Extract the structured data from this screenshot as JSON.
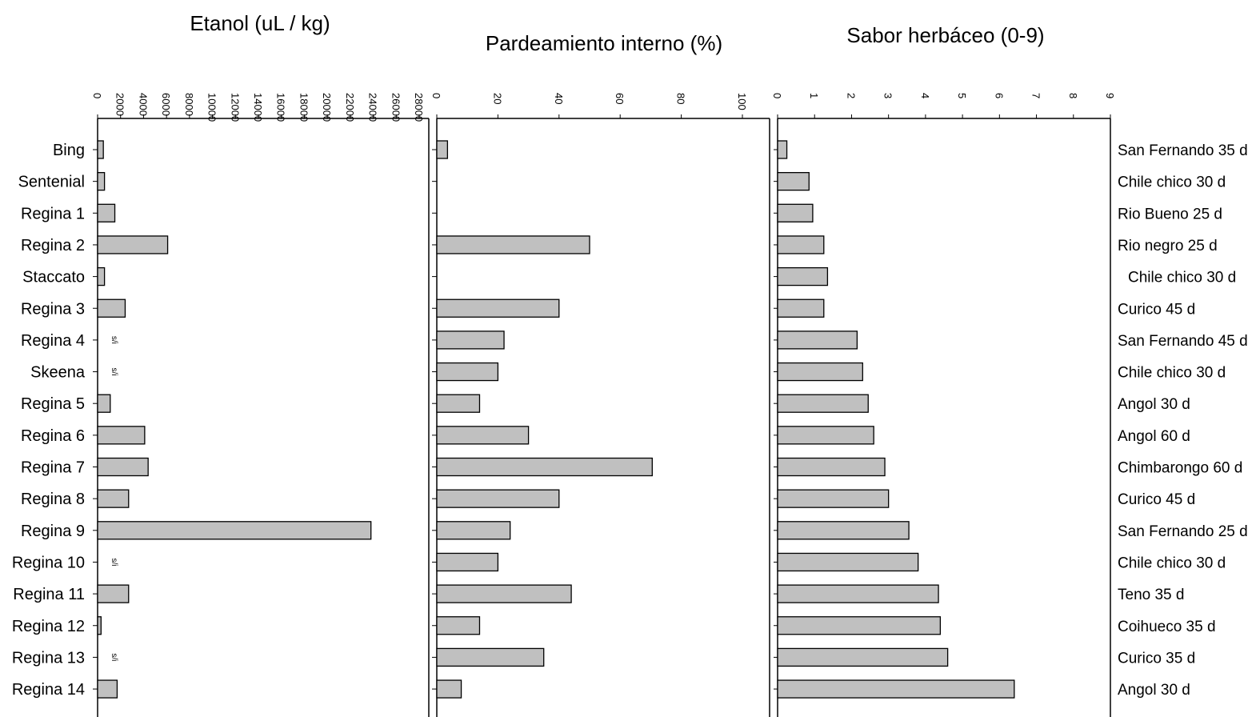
{
  "colors": {
    "bar_fill": "#c0c0c0",
    "bar_stroke": "#000000",
    "axis": "#000000",
    "background": "#ffffff"
  },
  "chart_data": [
    {
      "type": "bar",
      "orientation": "horizontal",
      "title": "Etanol (uL / kg)",
      "xlim": [
        0,
        28000
      ],
      "ticks": [
        "0",
        "2000",
        "4000",
        "6000",
        "8000",
        "10000",
        "12000",
        "14000",
        "16000",
        "18000",
        "20000",
        "22000",
        "24000",
        "26000",
        "28000"
      ],
      "categories": [
        "Bing",
        "Sentenial",
        "Regina 1",
        "Regina 2",
        "Staccato",
        "Regina 3",
        "Regina 4",
        "Skeena",
        "Regina 5",
        "Regina 6",
        "Regina 7",
        "Regina 8",
        "Regina 9",
        "Regina 10",
        "Regina 11",
        "Regina 12",
        "Regina 13",
        "Regina 14"
      ],
      "values": [
        500,
        600,
        1500,
        6100,
        600,
        2400,
        null,
        null,
        1100,
        4100,
        4400,
        2700,
        23800,
        null,
        2700,
        300,
        null,
        1700
      ],
      "annotations": [
        {
          "category": "Regina 4",
          "text": "s/i"
        },
        {
          "category": "Skeena",
          "text": "s/i"
        },
        {
          "category": "Regina 10",
          "text": "s/i"
        },
        {
          "category": "Regina 13",
          "text": "s/i"
        }
      ]
    },
    {
      "type": "bar",
      "orientation": "horizontal",
      "title": "Pardeamiento interno (%)",
      "xlim": [
        0,
        110
      ],
      "ticks": [
        "0",
        "20",
        "40",
        "60",
        "80",
        "100"
      ],
      "categories": [
        "Bing",
        "Sentenial",
        "Regina 1",
        "Regina 2",
        "Staccato",
        "Regina 3",
        "Regina 4",
        "Skeena",
        "Regina 5",
        "Regina 6",
        "Regina 7",
        "Regina 8",
        "Regina 9",
        "Regina 10",
        "Regina 11",
        "Regina 12",
        "Regina 13",
        "Regina 14"
      ],
      "values": [
        3.5,
        0,
        0,
        50,
        0,
        40,
        22,
        20,
        14,
        30,
        70.5,
        40,
        24,
        20,
        44,
        14,
        35,
        8
      ]
    },
    {
      "type": "bar",
      "orientation": "horizontal",
      "title": "Sabor herbáceo (0-9)",
      "xlim": [
        0,
        9
      ],
      "ticks": [
        "0",
        "1",
        "2",
        "3",
        "4",
        "5",
        "6",
        "7",
        "8",
        "9"
      ],
      "categories": [
        "San Fernando 35 d",
        "Chile chico 30 d",
        "Rio Bueno 25 d",
        "Rio negro 25 d",
        "Chile chico 30 d",
        "Curico 45 d",
        "San Fernando 45 d",
        "Chile chico 30 d",
        "Angol 30 d",
        "Angol 60 d",
        "Chimbarongo 60 d",
        "Curico 45 d",
        "San Fernando 25 d",
        "Chile chico 30 d",
        "Teno 35 d",
        "Coihueco 35 d",
        "Curico 35 d",
        "Angol 30 d"
      ],
      "values": [
        0.25,
        0.85,
        0.95,
        1.25,
        1.35,
        1.25,
        2.15,
        2.3,
        2.45,
        2.6,
        2.9,
        3.0,
        3.55,
        3.8,
        4.35,
        4.4,
        4.6,
        6.4
      ]
    }
  ]
}
